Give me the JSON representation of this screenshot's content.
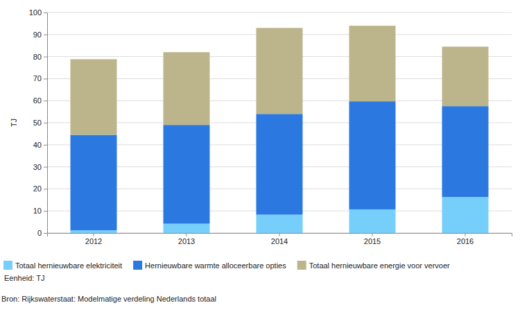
{
  "chart_data": {
    "type": "bar",
    "stacked": true,
    "grid": true,
    "legend": "bottom",
    "ylabel": "TJ",
    "annotations": [
      "Eenheid: TJ",
      "Bron: Rijkswaterstaat: Modelmatige verdeling Nederlands totaal"
    ],
    "categories": [
      "2012",
      "2013",
      "2014",
      "2015",
      "2016"
    ],
    "ylim": [
      0,
      100
    ],
    "yticks": [
      0,
      10,
      20,
      30,
      40,
      50,
      60,
      70,
      80,
      90,
      100
    ],
    "series": [
      {
        "name": "Totaal hernieuwbare elektriciteit",
        "color": "#76cffa",
        "values": [
          1.2,
          4.2,
          8.3,
          10.7,
          16.3
        ]
      },
      {
        "name": "Hernieuwbare warmte alloceerbare opties",
        "color": "#2b79e0",
        "values": [
          43.3,
          44.8,
          45.7,
          49.0,
          41.2
        ]
      },
      {
        "name": "Totaal hernieuwbare energie voor vervoer",
        "color": "#bcb58c",
        "values": [
          34.3,
          33.0,
          39.0,
          34.3,
          27.0
        ]
      }
    ]
  }
}
